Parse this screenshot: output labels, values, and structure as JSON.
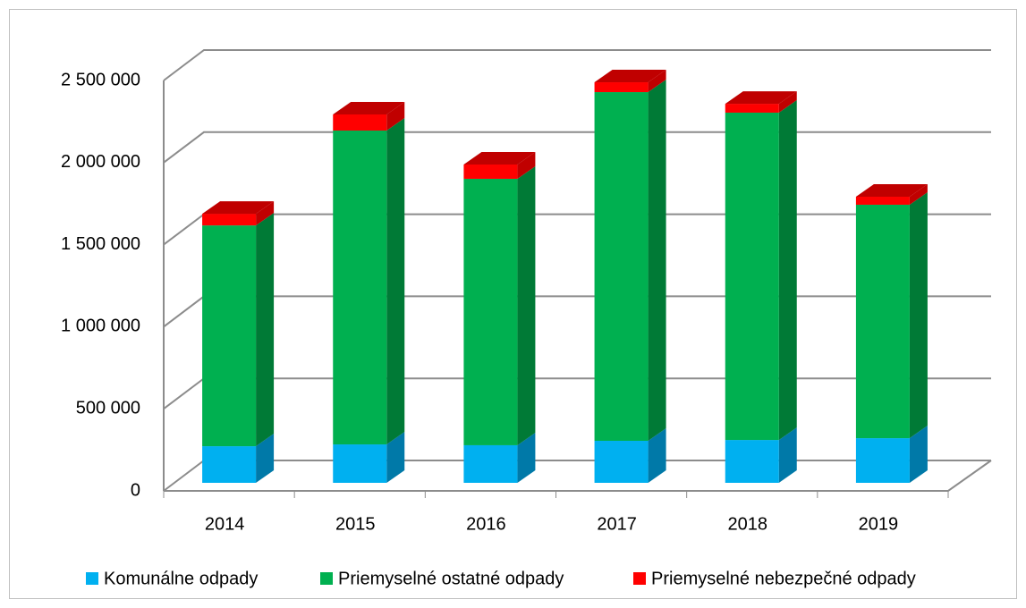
{
  "chart_data": {
    "type": "bar3d_stacked",
    "categories": [
      "2014",
      "2015",
      "2016",
      "2017",
      "2018",
      "2019"
    ],
    "series": [
      {
        "name": "Komunálne odpady",
        "color": "#00b0f0",
        "side_color": "#0079a8",
        "values": [
          223000,
          234000,
          229000,
          256000,
          261000,
          272000
        ]
      },
      {
        "name": "Priemyselné ostatné odpady",
        "color": "#00b050",
        "side_color": "#007a36",
        "values": [
          1345000,
          1912000,
          1623000,
          2124000,
          1994000,
          1422000
        ]
      },
      {
        "name": "Priemyselné nebezpečné odpady",
        "color": "#ff0000",
        "side_color": "#c00000",
        "values": [
          71000,
          98000,
          87000,
          60000,
          54000,
          49000
        ]
      }
    ],
    "ylim": [
      0,
      2500000
    ],
    "yticks": [
      0,
      {
        "value": 500000,
        "label": "500 000"
      },
      {
        "value": 1000000,
        "label": "1 000 000"
      },
      {
        "value": 1500000,
        "label": "1 500 000"
      },
      {
        "value": 2000000,
        "label": "2 000 000"
      },
      {
        "value": 2500000,
        "label": "2 500 000"
      }
    ],
    "grid": true,
    "legend": "bottom"
  }
}
